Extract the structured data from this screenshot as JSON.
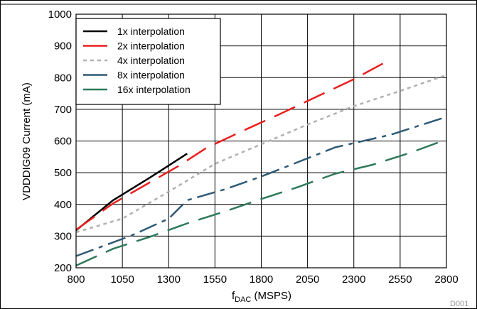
{
  "chart_data": {
    "type": "line",
    "title": "",
    "xlabel_main": "f",
    "xlabel_sub": "DAC",
    "xlabel_unit": " (MSPS)",
    "ylabel": "VDDDIG09 Current (mA)",
    "figure_id": "D001",
    "xlim": [
      800,
      2800
    ],
    "ylim": [
      200,
      1000
    ],
    "xticks": [
      800,
      1050,
      1300,
      1550,
      1800,
      2050,
      2300,
      2550,
      2800
    ],
    "yticks": [
      200,
      300,
      400,
      500,
      600,
      700,
      800,
      900,
      1000
    ],
    "grid": true,
    "legend_position": "top-left",
    "series": [
      {
        "name": "1x interpolation",
        "color": "#000000",
        "dash": "solid",
        "x": [
          800,
          1000,
          1200,
          1400
        ],
        "y": [
          318,
          413,
          485,
          560
        ]
      },
      {
        "name": "2x interpolation",
        "color": "#e8201e",
        "dash": "long-dash",
        "x": [
          800,
          1000,
          1200,
          1350,
          1500,
          1700,
          1900,
          2100,
          2300,
          2500
        ],
        "y": [
          320,
          403,
          470,
          520,
          577,
          632,
          685,
          740,
          795,
          858
        ]
      },
      {
        "name": "4x interpolation",
        "color": "#b0b0b0",
        "dash": "short-dash",
        "x": [
          800,
          1050,
          1300,
          1550,
          1800,
          2050,
          2300,
          2550,
          2800
        ],
        "y": [
          312,
          355,
          440,
          528,
          590,
          652,
          710,
          758,
          808
        ]
      },
      {
        "name": "8x interpolation",
        "color": "#2e5a76",
        "dash": "dash-dot",
        "x": [
          800,
          1100,
          1300,
          1400,
          1600,
          1800,
          2000,
          2200,
          2500,
          2800
        ],
        "y": [
          237,
          302,
          355,
          413,
          447,
          488,
          534,
          580,
          620,
          676
        ]
      },
      {
        "name": "16x interpolation",
        "color": "#2e7a5a",
        "dash": "long-dash",
        "x": [
          800,
          1000,
          1200,
          1400,
          1600,
          1800,
          2000,
          2200,
          2400,
          2600,
          2800
        ],
        "y": [
          207,
          260,
          298,
          340,
          377,
          417,
          455,
          497,
          525,
          562,
          605
        ]
      }
    ]
  }
}
